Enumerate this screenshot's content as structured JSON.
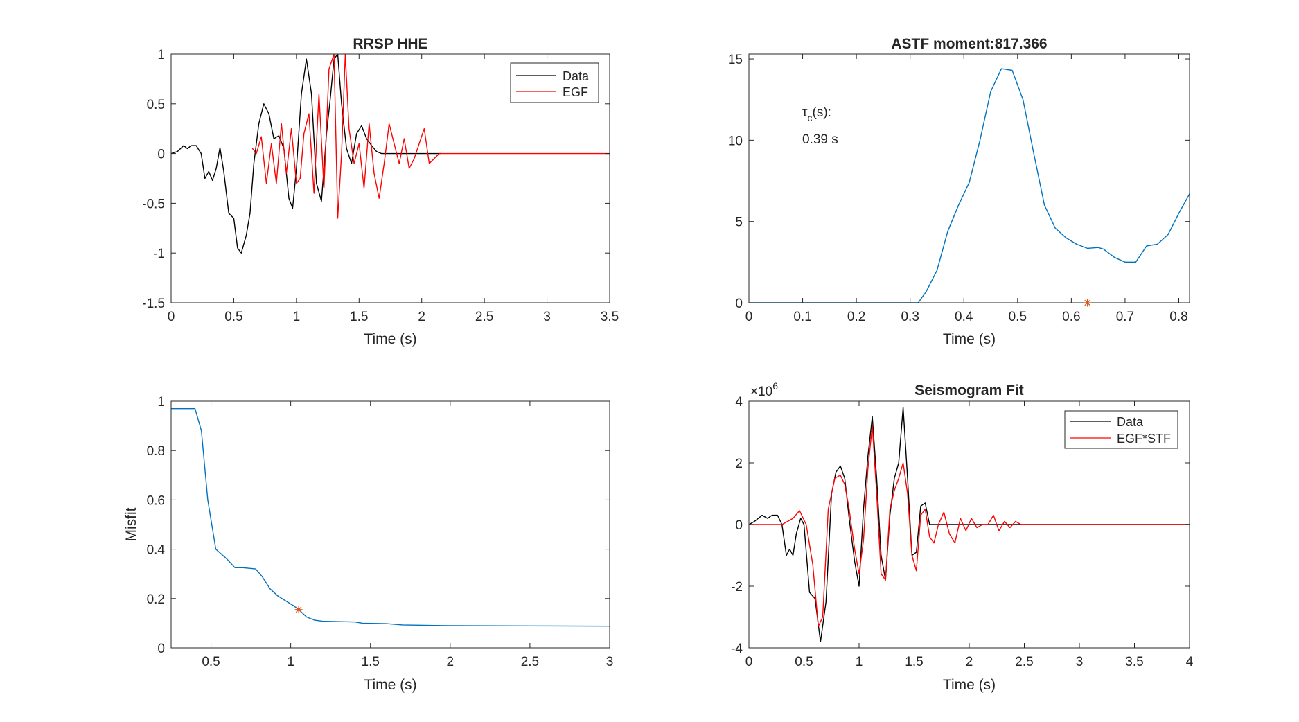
{
  "figure": {
    "colors": {
      "data": "#000000",
      "egf": "#ff0000",
      "blue": "#0072bd",
      "marker": "#d95319",
      "axis": "#262626",
      "background": "#ffffff"
    }
  },
  "chart_data": [
    {
      "id": "rrsp",
      "type": "line",
      "title": "RRSP HHE",
      "xlabel": "Time (s)",
      "ylabel": "",
      "xlim": [
        0,
        3.5
      ],
      "ylim": [
        -1.5,
        1
      ],
      "xticks": [
        0,
        0.5,
        1,
        1.5,
        2,
        2.5,
        3,
        3.5
      ],
      "xtick_labels": [
        "0",
        "0.5",
        "1",
        "1.5",
        "2",
        "2.5",
        "3",
        "3.5"
      ],
      "yticks": [
        -1.5,
        -1,
        -0.5,
        0,
        0.5,
        1
      ],
      "ytick_labels": [
        "-1.5",
        "-1",
        "-0.5",
        "0",
        "0.5",
        "1"
      ],
      "legend_position": "top-right",
      "series": [
        {
          "name": "Data",
          "color": "#000000",
          "x": [
            0,
            0.05,
            0.1,
            0.13,
            0.16,
            0.2,
            0.24,
            0.27,
            0.3,
            0.33,
            0.36,
            0.39,
            0.42,
            0.46,
            0.5,
            0.53,
            0.56,
            0.6,
            0.63,
            0.66,
            0.7,
            0.74,
            0.78,
            0.82,
            0.86,
            0.9,
            0.94,
            0.97,
            1.0,
            1.04,
            1.08,
            1.12,
            1.16,
            1.2,
            1.24,
            1.27,
            1.3,
            1.33,
            1.36,
            1.4,
            1.44,
            1.48,
            1.52,
            1.56,
            1.6,
            1.64,
            1.68,
            1.72,
            1.76,
            1.8,
            1.85,
            1.9,
            1.95,
            2.0,
            2.05,
            2.1,
            2.15
          ],
          "values": [
            0,
            0.02,
            0.08,
            0.05,
            0.08,
            0.08,
            0.0,
            -0.25,
            -0.18,
            -0.27,
            -0.15,
            0.06,
            -0.18,
            -0.6,
            -0.65,
            -0.95,
            -1.0,
            -0.82,
            -0.6,
            -0.1,
            0.3,
            0.5,
            0.4,
            0.15,
            0.18,
            0.05,
            -0.45,
            -0.55,
            -0.15,
            0.6,
            0.95,
            0.6,
            -0.3,
            -0.48,
            0.2,
            0.55,
            0.95,
            1.0,
            0.5,
            0.05,
            -0.1,
            0.2,
            0.28,
            0.15,
            0.08,
            0.02,
            0.0,
            0.0,
            0.0,
            0.0,
            0.0,
            0.0,
            0.0,
            0.0,
            0.0,
            0.0,
            0.0
          ]
        },
        {
          "name": "EGF",
          "color": "#ff0000",
          "x": [
            0.65,
            0.68,
            0.72,
            0.76,
            0.8,
            0.84,
            0.88,
            0.92,
            0.96,
            1.0,
            1.03,
            1.06,
            1.1,
            1.14,
            1.18,
            1.22,
            1.26,
            1.3,
            1.33,
            1.36,
            1.39,
            1.42,
            1.46,
            1.5,
            1.54,
            1.58,
            1.62,
            1.66,
            1.7,
            1.74,
            1.78,
            1.82,
            1.86,
            1.9,
            1.94,
            1.98,
            2.02,
            2.06,
            2.1,
            2.14,
            2.18,
            2.3,
            2.6,
            3.0,
            3.5
          ],
          "values": [
            0.05,
            0.0,
            0.17,
            -0.3,
            0.1,
            -0.3,
            0.3,
            -0.2,
            0.25,
            -0.3,
            -0.25,
            0.2,
            0.4,
            -0.4,
            0.6,
            -0.35,
            0.85,
            1.0,
            -0.65,
            0.0,
            1.0,
            0.25,
            -0.1,
            0.1,
            -0.35,
            0.3,
            -0.2,
            -0.45,
            -0.1,
            0.3,
            0.1,
            -0.1,
            0.15,
            -0.15,
            -0.05,
            0.1,
            0.25,
            -0.1,
            -0.05,
            0.0,
            0.0,
            0.0,
            0.0,
            0.0,
            0.0
          ]
        }
      ]
    },
    {
      "id": "astf",
      "type": "line",
      "title": "ASTF moment:817.366",
      "xlabel": "Time (s)",
      "ylabel": "",
      "xlim": [
        0,
        0.82
      ],
      "ylim": [
        0,
        15.3
      ],
      "xticks": [
        0,
        0.1,
        0.2,
        0.3,
        0.4,
        0.5,
        0.6,
        0.7,
        0.8
      ],
      "xtick_labels": [
        "0",
        "0.1",
        "0.2",
        "0.3",
        "0.4",
        "0.5",
        "0.6",
        "0.7",
        "0.8"
      ],
      "yticks": [
        0,
        5,
        10,
        15
      ],
      "ytick_labels": [
        "0",
        "5",
        "10",
        "15"
      ],
      "annotation_label": "τ",
      "annotation_subscript": "c",
      "annotation_suffix": "(s):",
      "annotation_value": "0.39 s",
      "marker": {
        "x": 0.63,
        "y": 0
      },
      "series": [
        {
          "name": "",
          "color": "#0072bd",
          "x": [
            0,
            0.1,
            0.2,
            0.3,
            0.315,
            0.33,
            0.35,
            0.37,
            0.39,
            0.41,
            0.43,
            0.45,
            0.47,
            0.49,
            0.51,
            0.53,
            0.55,
            0.57,
            0.59,
            0.61,
            0.63,
            0.65,
            0.66,
            0.68,
            0.7,
            0.72,
            0.74,
            0.76,
            0.78,
            0.8,
            0.82
          ],
          "values": [
            0,
            0,
            0,
            0,
            0,
            0.7,
            2.0,
            4.4,
            6.0,
            7.4,
            10.0,
            13.0,
            14.4,
            14.3,
            12.5,
            9.2,
            6.0,
            4.6,
            4.0,
            3.6,
            3.35,
            3.4,
            3.3,
            2.8,
            2.5,
            2.5,
            3.5,
            3.6,
            4.2,
            5.5,
            6.7
          ]
        }
      ]
    },
    {
      "id": "misfit",
      "type": "line",
      "title": "",
      "xlabel": "Time (s)",
      "ylabel": "Misfit",
      "xlim": [
        0.25,
        3
      ],
      "ylim": [
        0,
        1
      ],
      "xticks": [
        0.5,
        1,
        1.5,
        2,
        2.5,
        3
      ],
      "xtick_labels": [
        "0.5",
        "1",
        "1.5",
        "2",
        "2.5",
        "3"
      ],
      "yticks": [
        0,
        0.2,
        0.4,
        0.6,
        0.8,
        1
      ],
      "ytick_labels": [
        "0",
        "0.2",
        "0.4",
        "0.6",
        "0.8",
        "1"
      ],
      "marker": {
        "x": 1.05,
        "y": 0.155
      },
      "series": [
        {
          "name": "",
          "color": "#0072bd",
          "x": [
            0.25,
            0.4,
            0.44,
            0.48,
            0.53,
            0.6,
            0.65,
            0.7,
            0.78,
            0.82,
            0.87,
            0.92,
            0.97,
            1.02,
            1.05,
            1.1,
            1.15,
            1.2,
            1.4,
            1.45,
            1.6,
            1.7,
            2.0,
            2.5,
            3.0
          ],
          "values": [
            0.97,
            0.97,
            0.88,
            0.6,
            0.4,
            0.36,
            0.325,
            0.325,
            0.32,
            0.29,
            0.24,
            0.21,
            0.19,
            0.17,
            0.155,
            0.125,
            0.112,
            0.108,
            0.105,
            0.1,
            0.098,
            0.093,
            0.09,
            0.089,
            0.088
          ]
        }
      ]
    },
    {
      "id": "fit",
      "type": "line",
      "title": "Seismogram Fit",
      "xlabel": "Time (s)",
      "ylabel": "",
      "xlim": [
        0,
        4
      ],
      "ylim": [
        -4,
        4
      ],
      "xticks": [
        0,
        0.5,
        1,
        1.5,
        2,
        2.5,
        3,
        3.5,
        4
      ],
      "xtick_labels": [
        "0",
        "0.5",
        "1",
        "1.5",
        "2",
        "2.5",
        "3",
        "3.5",
        "4"
      ],
      "yticks": [
        -4,
        -2,
        0,
        2,
        4
      ],
      "ytick_labels": [
        "-4",
        "-2",
        "0",
        "2",
        "4"
      ],
      "exponent_base": "×10",
      "exponent_power": "6",
      "legend_position": "top-right",
      "series": [
        {
          "name": "Data",
          "color": "#000000",
          "x": [
            0,
            0.05,
            0.12,
            0.17,
            0.21,
            0.26,
            0.3,
            0.34,
            0.37,
            0.4,
            0.43,
            0.47,
            0.5,
            0.55,
            0.6,
            0.65,
            0.7,
            0.75,
            0.79,
            0.83,
            0.87,
            0.91,
            0.96,
            1.0,
            1.04,
            1.08,
            1.12,
            1.16,
            1.2,
            1.24,
            1.28,
            1.32,
            1.36,
            1.4,
            1.44,
            1.48,
            1.52,
            1.56,
            1.6,
            1.64,
            1.68,
            1.72,
            1.8,
            1.9,
            2.0,
            2.5,
            3.0,
            4.0
          ],
          "values": [
            0,
            0.1,
            0.3,
            0.2,
            0.3,
            0.3,
            0.0,
            -1.0,
            -0.8,
            -1.0,
            -0.3,
            0.2,
            0.0,
            -2.2,
            -2.4,
            -3.8,
            -2.5,
            1.0,
            1.7,
            1.9,
            1.5,
            0.2,
            -1.2,
            -2.0,
            0.5,
            2.2,
            3.5,
            1.5,
            -1.0,
            -1.8,
            0.3,
            1.5,
            2.0,
            3.8,
            1.5,
            -1.0,
            -0.9,
            0.6,
            0.7,
            0.0,
            0.0,
            0.0,
            0.0,
            0.0,
            0.0,
            0.0,
            0.0,
            0.0
          ]
        },
        {
          "name": "EGF*STF",
          "color": "#ff0000",
          "x": [
            0,
            0.3,
            0.4,
            0.46,
            0.52,
            0.58,
            0.63,
            0.67,
            0.72,
            0.78,
            0.83,
            0.87,
            0.91,
            0.96,
            1.0,
            1.04,
            1.08,
            1.12,
            1.16,
            1.2,
            1.24,
            1.28,
            1.32,
            1.36,
            1.4,
            1.44,
            1.48,
            1.52,
            1.56,
            1.6,
            1.64,
            1.68,
            1.72,
            1.77,
            1.82,
            1.87,
            1.92,
            1.97,
            2.02,
            2.07,
            2.12,
            2.17,
            2.22,
            2.27,
            2.32,
            2.37,
            2.42,
            2.47,
            2.52,
            2.6,
            3.0,
            4.0
          ],
          "values": [
            0,
            0,
            0.2,
            0.45,
            0.0,
            -1.3,
            -3.3,
            -3.0,
            0.5,
            1.5,
            1.6,
            1.3,
            0.5,
            -0.8,
            -1.6,
            -0.5,
            1.8,
            3.2,
            1.0,
            -1.6,
            -1.8,
            0.5,
            1.1,
            1.5,
            2.0,
            1.0,
            -1.0,
            -1.5,
            0.3,
            0.5,
            -0.4,
            -0.6,
            0.0,
            0.4,
            -0.3,
            -0.6,
            0.2,
            -0.2,
            0.2,
            -0.1,
            0.0,
            0.0,
            0.3,
            -0.2,
            0.1,
            -0.1,
            0.1,
            0.0,
            0.0,
            0.0,
            0.0,
            0.0
          ]
        }
      ]
    }
  ]
}
